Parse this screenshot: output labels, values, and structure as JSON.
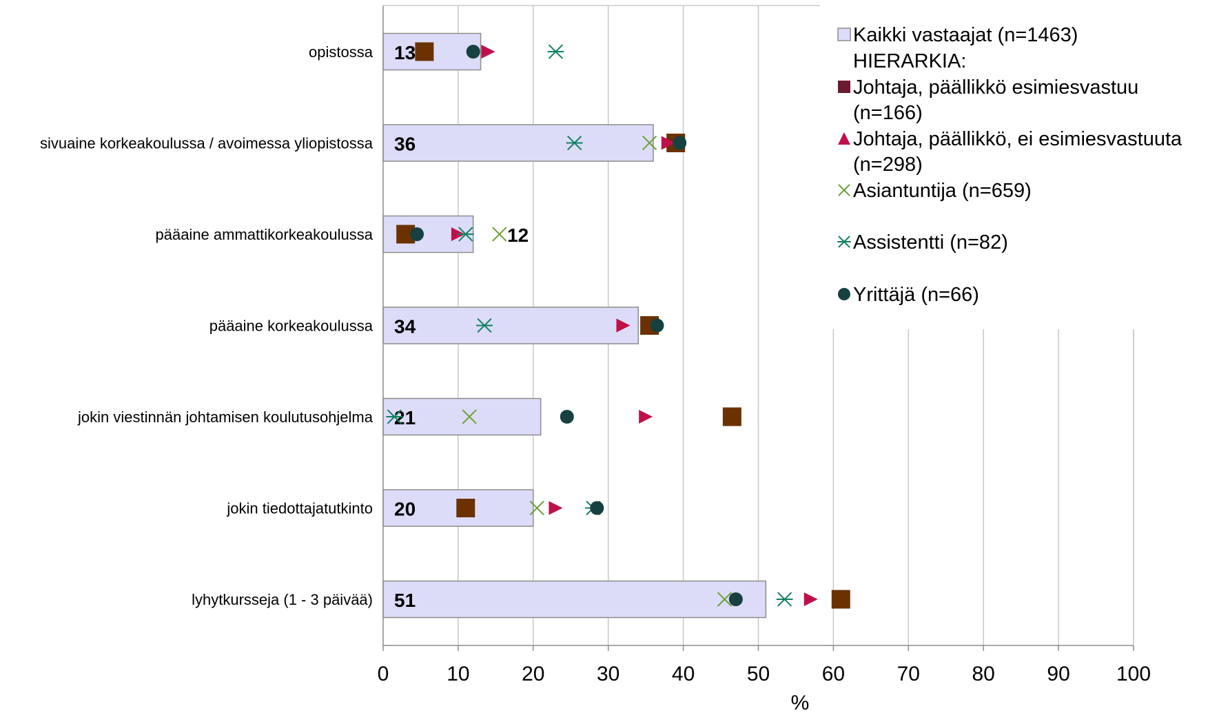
{
  "chart_data": {
    "type": "bar",
    "orientation": "horizontal",
    "categories": [
      "opistossa",
      "sivuaine korkeakoulussa / avoimessa yliopistossa",
      "pääaine ammattikorkeakoulussa",
      "pääaine korkeakoulussa",
      "jokin viestinnän johtamisen koulutusohjelma",
      "jokin tiedottajatutkinto",
      "lyhytkursseja (1 - 3 päivää)"
    ],
    "xlabel": "%",
    "xlim": [
      0,
      100
    ],
    "xticks": [
      0,
      10,
      20,
      30,
      40,
      50,
      60,
      70,
      80,
      90,
      100
    ],
    "grid": true,
    "legend_position": "top-right",
    "legend_subtitle": "HIERARKIA:",
    "bar_series": {
      "name": "Kaikki vastaajat (n=1463)",
      "values": [
        13,
        36,
        12,
        34,
        21,
        20,
        51
      ],
      "labels": [
        "13",
        "36",
        "12",
        "34",
        "21",
        "20",
        "51"
      ],
      "fill": "#dcdcf8",
      "stroke": "#8c8c8c"
    },
    "series": [
      {
        "name": "Johtaja, päällikkö esimiesvastuu (n=166)",
        "marker": "square",
        "legend_color": "#6b1a30",
        "color": "#6b3200",
        "values": [
          5.5,
          39,
          3,
          35.5,
          46.5,
          11,
          61
        ]
      },
      {
        "name": "Johtaja, päällikkö, ei esimiesvastuuta (n=298)",
        "marker": "triangle",
        "color": "#c0104a",
        "values": [
          14,
          38,
          10,
          32,
          35,
          23,
          57
        ]
      },
      {
        "name": "Asiantuntija (n=659)",
        "marker": "x",
        "color": "#6aa030",
        "values": [
          null,
          35.5,
          15.5,
          null,
          11.5,
          20.5,
          45.5
        ]
      },
      {
        "name": "Assistentti (n=82)",
        "marker": "asterisk",
        "color": "#108060",
        "values": [
          23,
          25.5,
          11,
          13.5,
          1.5,
          28,
          53.5
        ]
      },
      {
        "name": "Yrittäjä (n=66)",
        "marker": "circle",
        "color": "#174040",
        "values": [
          12,
          39.5,
          4.5,
          36.5,
          24.5,
          28.5,
          47
        ]
      }
    ]
  }
}
